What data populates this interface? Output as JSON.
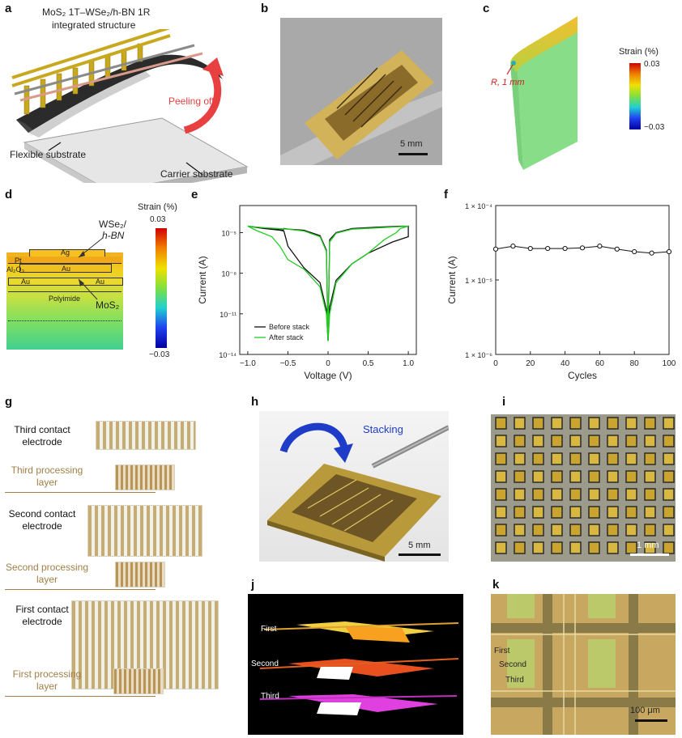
{
  "panels": {
    "a": {
      "label": "a",
      "title_line1": "MoS₂ 1T–WSe₂/h-BN 1R",
      "title_line2": "integrated structure",
      "peeling": "Peeling off",
      "flexible": "Flexible substrate",
      "carrier": "Carrier substrate"
    },
    "b": {
      "label": "b",
      "scale": "5 mm"
    },
    "c": {
      "label": "c",
      "strain_title": "Strain (%)",
      "max": "0.03",
      "min": "−0.03",
      "radius": "R, 1 mm"
    },
    "d": {
      "label": "d",
      "strain_title": "Strain (%)",
      "max": "0.03",
      "min": "−0.03",
      "layers": {
        "ag": "Ag",
        "pt": "Pt",
        "al2o3": "Al₂O₃",
        "au_top": "Au",
        "au_left": "Au",
        "au_right": "Au",
        "polyimide": "Polyimide"
      },
      "wse2": "WSe₂/",
      "hbn": "h-BN",
      "mos2": "MoS₂"
    },
    "e": {
      "label": "e"
    },
    "f": {
      "label": "f"
    },
    "g": {
      "label": "g",
      "items": [
        {
          "text": "Third contact electrode",
          "type": "electrode"
        },
        {
          "text": "Third processing layer",
          "type": "layer"
        },
        {
          "text": "Second contact electrode",
          "type": "electrode"
        },
        {
          "text": "Second processing layer",
          "type": "layer"
        },
        {
          "text": "First contact electrode",
          "type": "electrode"
        },
        {
          "text": "First processing layer",
          "type": "layer"
        }
      ]
    },
    "h": {
      "label": "h",
      "stacking": "Stacking",
      "scale": "5 mm"
    },
    "i": {
      "label": "i",
      "scale": "1 mm"
    },
    "j": {
      "label": "j",
      "first": "First",
      "second": "Second",
      "third": "Third"
    },
    "k": {
      "label": "k",
      "first": "First",
      "second": "Second",
      "third": "Third",
      "scale": "100 μm"
    }
  },
  "chart_data": [
    {
      "panel": "e",
      "type": "line",
      "xlabel": "Voltage (V)",
      "ylabel": "Current (A)",
      "xlim": [
        -1.1,
        1.1
      ],
      "ylim": [
        1e-14,
        0.001
      ],
      "yscale": "log",
      "xticks": [
        "−1.0",
        "−0.5",
        "0",
        "0.5",
        "1.0"
      ],
      "yticks": [
        "10⁻¹⁴",
        "10⁻¹¹",
        "10⁻⁸",
        "10⁻⁵"
      ],
      "legend_position": "bottom-right",
      "series": [
        {
          "name": "Before stack",
          "color": "#111111",
          "x": [
            -1.0,
            -0.8,
            -0.6,
            -0.55,
            -0.5,
            -0.3,
            -0.1,
            -0.02,
            0.0,
            0.02,
            0.1,
            0.3,
            0.5,
            0.8,
            1.0,
            1.0,
            0.9,
            0.6,
            0.3,
            0.1,
            0.02,
            0.0,
            -0.02,
            -0.1,
            -0.3,
            -0.5,
            -0.55,
            -0.56,
            -0.7,
            -0.9,
            -1.0
          ],
          "y": [
            3e-05,
            2e-05,
            1.5e-05,
            1.3e-05,
            1e-06,
            2.5e-08,
            2e-09,
            2e-11,
            1e-13,
            3e-11,
            3e-09,
            5e-08,
            3e-07,
            2e-06,
            5e-06,
            3e-05,
            3e-05,
            2.5e-05,
            2e-05,
            1e-05,
            3e-06,
            1e-13,
            5e-07,
            6e-06,
            1.5e-05,
            1.8e-05,
            2e-05,
            1.5e-05,
            2e-05,
            2.5e-05,
            3e-05
          ]
        },
        {
          "name": "After stack",
          "color": "#22cc22",
          "x": [
            -1.0,
            -0.9,
            -0.7,
            -0.6,
            -0.5,
            -0.3,
            -0.1,
            -0.02,
            0.0,
            0.02,
            0.1,
            0.3,
            0.5,
            0.7,
            0.85,
            0.9,
            1.0,
            1.0,
            0.9,
            0.6,
            0.3,
            0.1,
            0.02,
            0.0,
            -0.02,
            -0.1,
            -0.3,
            -0.5,
            -0.8,
            -1.0
          ],
          "y": [
            3e-05,
            1.5e-05,
            5e-06,
            1e-06,
            1e-07,
            2e-08,
            1e-09,
            1e-11,
            1e-13,
            1e-11,
            2e-09,
            5e-08,
            3e-07,
            3e-06,
            1e-05,
            2e-05,
            3e-05,
            3e-05,
            2.8e-05,
            2.2e-05,
            1.8e-05,
            9e-06,
            2e-06,
            1e-13,
            4e-07,
            5e-06,
            1.3e-05,
            1.8e-05,
            2.3e-05,
            3e-05
          ]
        }
      ]
    },
    {
      "panel": "f",
      "type": "line",
      "xlabel": "Cycles",
      "ylabel": "Current (A)",
      "xlim": [
        0,
        100
      ],
      "ylim": [
        1e-06,
        0.0001
      ],
      "yscale": "log",
      "xticks": [
        "0",
        "20",
        "40",
        "60",
        "80",
        "100"
      ],
      "yticks": [
        "1 × 10⁻⁶",
        "1 × 10⁻⁵",
        "1 × 10⁻⁴"
      ],
      "series": [
        {
          "color": "#111111",
          "x": [
            0,
            10,
            20,
            30,
            40,
            50,
            60,
            70,
            80,
            90,
            100
          ],
          "y": [
            2.6e-05,
            2.85e-05,
            2.65e-05,
            2.65e-05,
            2.65e-05,
            2.7e-05,
            2.85e-05,
            2.6e-05,
            2.4e-05,
            2.3e-05,
            2.4e-05
          ]
        }
      ]
    }
  ]
}
